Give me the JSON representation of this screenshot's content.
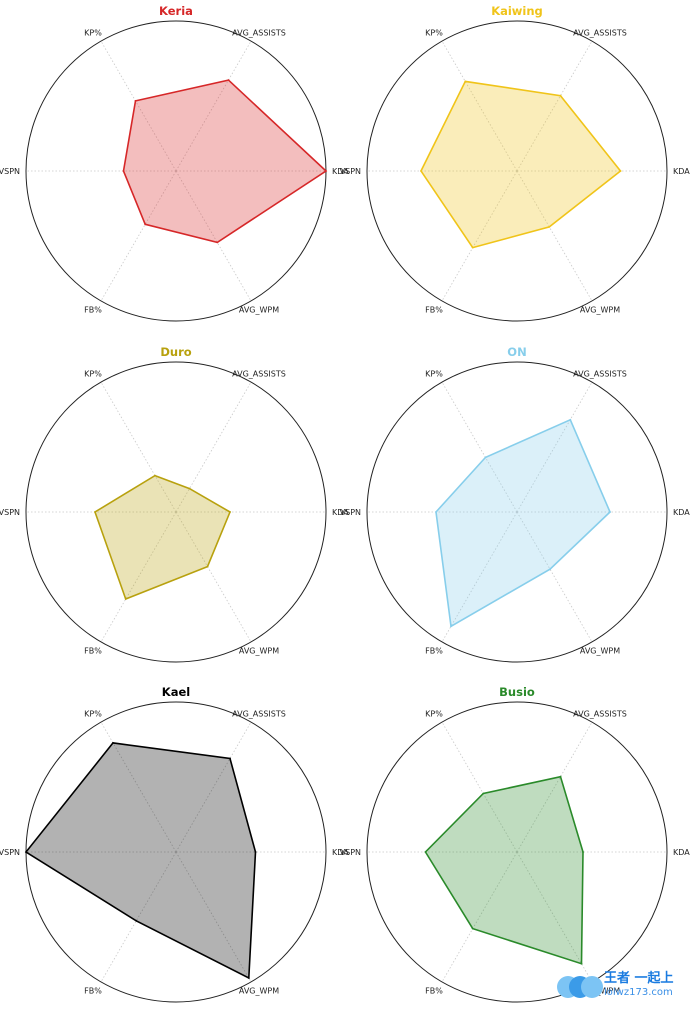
{
  "chart_data": [
    {
      "type": "radar",
      "title": "Keria",
      "color": "#d62728",
      "axes": [
        "KDA",
        "AVG_ASSISTS",
        "KP%",
        "VSPN",
        "FB%",
        "AVG_WPM"
      ],
      "values": [
        1.0,
        0.7,
        0.54,
        0.35,
        0.41,
        0.55
      ],
      "rlim": [
        0,
        1
      ],
      "grid": true
    },
    {
      "type": "radar",
      "title": "Kaiwing",
      "color": "#f0c419",
      "axes": [
        "KDA",
        "AVG_ASSISTS",
        "KP%",
        "VSPN",
        "FB%",
        "AVG_WPM"
      ],
      "values": [
        0.69,
        0.58,
        0.69,
        0.64,
        0.59,
        0.43
      ],
      "rlim": [
        0,
        1
      ],
      "grid": true
    },
    {
      "type": "radar",
      "title": "Duro",
      "color": "#b8a10e",
      "axes": [
        "KDA",
        "AVG_ASSISTS",
        "KP%",
        "VSPN",
        "FB%",
        "AVG_WPM"
      ],
      "values": [
        0.36,
        0.18,
        0.28,
        0.54,
        0.67,
        0.42
      ],
      "rlim": [
        0,
        1
      ],
      "grid": true
    },
    {
      "type": "radar",
      "title": "ON",
      "color": "#87ceeb",
      "axes": [
        "KDA",
        "AVG_ASSISTS",
        "KP%",
        "VSPN",
        "FB%",
        "AVG_WPM"
      ],
      "values": [
        0.62,
        0.71,
        0.42,
        0.54,
        0.88,
        0.44
      ],
      "rlim": [
        0,
        1
      ],
      "grid": true
    },
    {
      "type": "radar",
      "title": "Kael",
      "color": "#000000",
      "axes": [
        "KDA",
        "AVG_ASSISTS",
        "KP%",
        "VSPN",
        "FB%",
        "AVG_WPM"
      ],
      "values": [
        0.53,
        0.72,
        0.84,
        1.0,
        0.53,
        0.97
      ],
      "rlim": [
        0,
        1
      ],
      "grid": true
    },
    {
      "type": "radar",
      "title": "Busio",
      "color": "#2a8a2a",
      "axes": [
        "KDA",
        "AVG_ASSISTS",
        "KP%",
        "VSPN",
        "FB%",
        "AVG_WPM"
      ],
      "values": [
        0.44,
        0.58,
        0.45,
        0.61,
        0.59,
        0.86
      ],
      "rlim": [
        0,
        1
      ],
      "grid": true
    }
  ],
  "watermark": {
    "title": "王者 一起上",
    "subtitle": "lolwz173.com",
    "colors": [
      "#7cc4f4",
      "#3b9be8",
      "#1a7be0"
    ]
  }
}
